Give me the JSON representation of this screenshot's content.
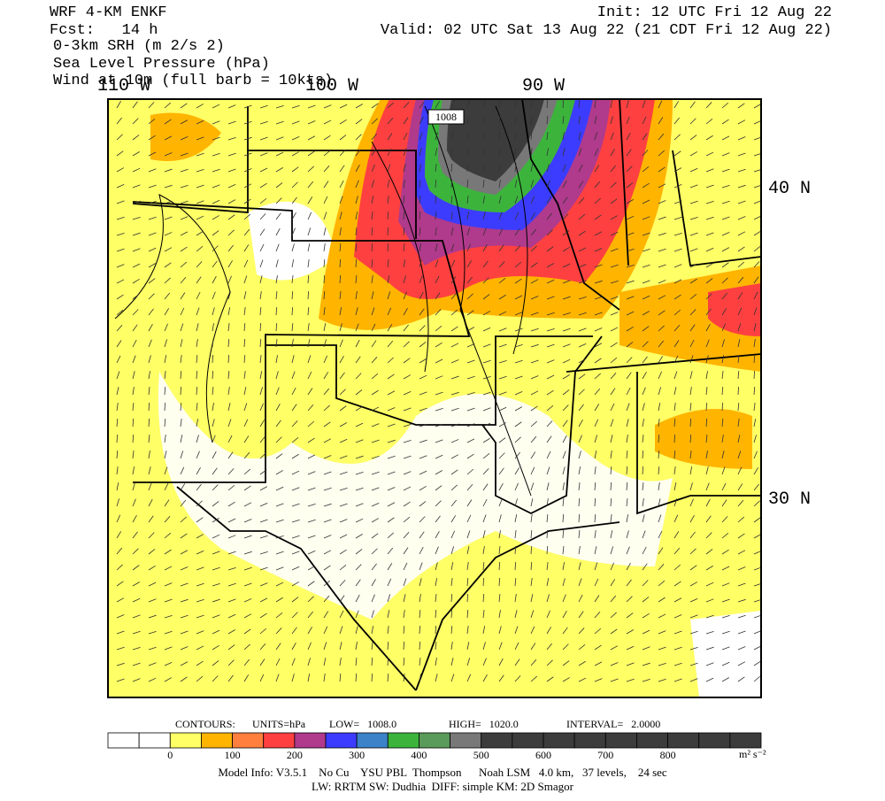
{
  "header": {
    "model": "WRF 4-KM ENKF",
    "forecast": "Fcst:   14 h",
    "init": "Init: 12 UTC Fri 12 Aug 22",
    "valid": "Valid: 02 UTC Sat 13 Aug 22 (21 CDT Fri 12 Aug 22)",
    "fields": [
      "0-3km SRH (m 2/s 2)",
      "Sea Level Pressure (hPa)",
      "Wind at 10m (full barb = 10kts)"
    ]
  },
  "map": {
    "longitude_labels": [
      "110 W",
      "100 W",
      "90 W"
    ],
    "latitude_labels": [
      "40 N",
      "30 N"
    ],
    "contour_label": "1008"
  },
  "contours": {
    "label": "CONTOURS:",
    "units": "UNITS=hPa",
    "low": "LOW=   1008.0",
    "high": "HIGH=   1020.0",
    "interval": "INTERVAL=   2.0000"
  },
  "colorbar": {
    "labels": [
      "0",
      "100",
      "200",
      "300",
      "400",
      "500",
      "600",
      "700",
      "800"
    ],
    "unit": "m² s⁻²"
  },
  "footer": [
    "Model Info: V3.5.1    No Cu    YSU PBL  Thompson      Noah LSM   4.0 km,   37 levels,    24 sec",
    "LW: RRTM SW: Dudhia  DIFF: simple KM: 2D Smagor"
  ]
}
